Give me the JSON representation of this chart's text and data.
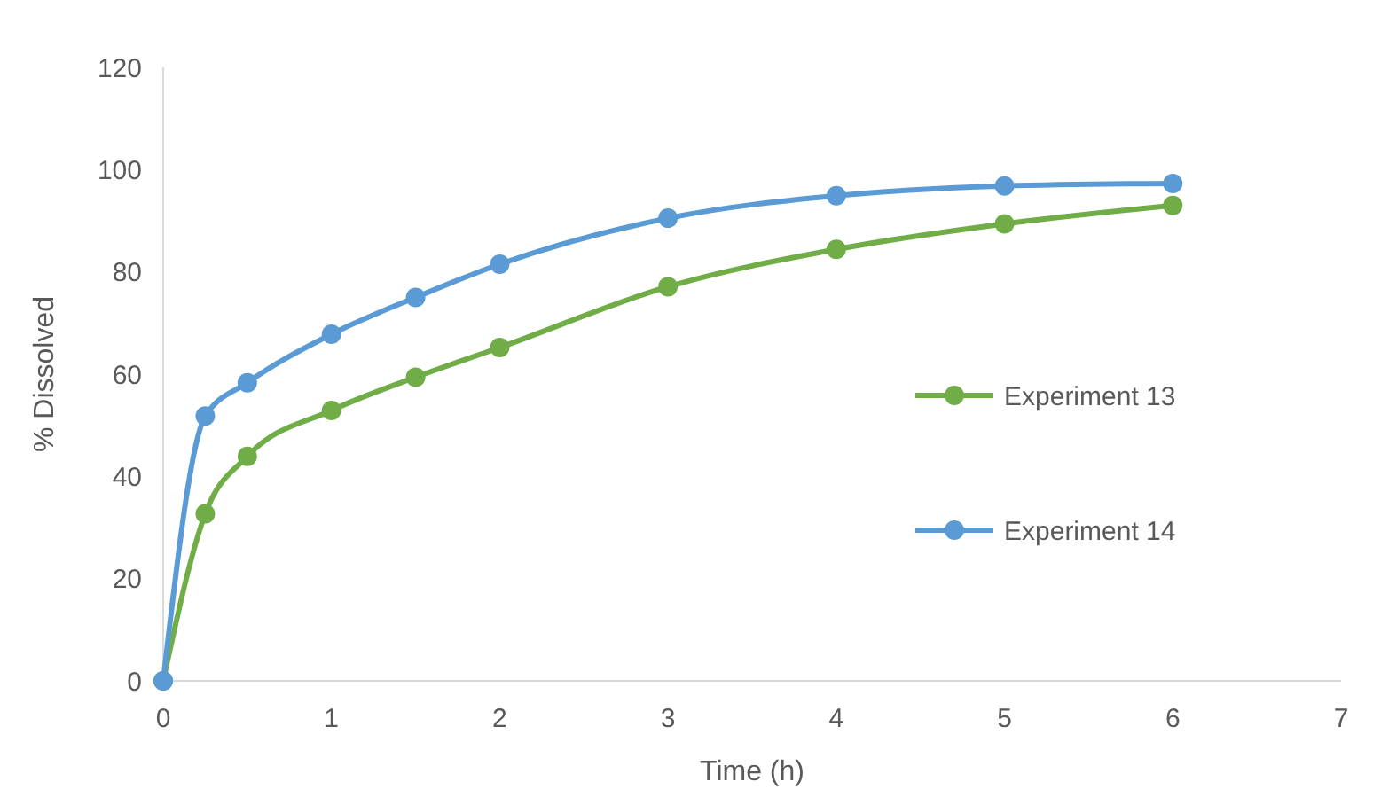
{
  "chart_data": {
    "type": "line",
    "xlabel": "Time (h)",
    "ylabel": "% Dissolved",
    "xlim": [
      0,
      7
    ],
    "xticks": [
      0,
      1,
      2,
      3,
      4,
      5,
      6,
      7
    ],
    "ylim": [
      0,
      120
    ],
    "yticks": [
      0,
      20,
      40,
      60,
      80,
      100,
      120
    ],
    "grid": false,
    "legend": "right",
    "marker": "circle",
    "line_style": "solid",
    "series": [
      {
        "name": "Experiment 13",
        "color": "#70ad47",
        "x": [
          0,
          0.25,
          0.5,
          1,
          1.5,
          2,
          3,
          4,
          5,
          6
        ],
        "values": [
          0,
          32.7,
          43.9,
          52.9,
          59.4,
          65.2,
          77.1,
          84.4,
          89.4,
          93
        ]
      },
      {
        "name": "Experiment 14",
        "color": "#5b9bd5",
        "x": [
          0,
          0.25,
          0.5,
          1,
          1.5,
          2,
          3,
          4,
          5,
          6
        ],
        "values": [
          0,
          51.8,
          58.3,
          67.8,
          75,
          81.5,
          90.5,
          94.9,
          96.8,
          97.3
        ]
      }
    ]
  }
}
